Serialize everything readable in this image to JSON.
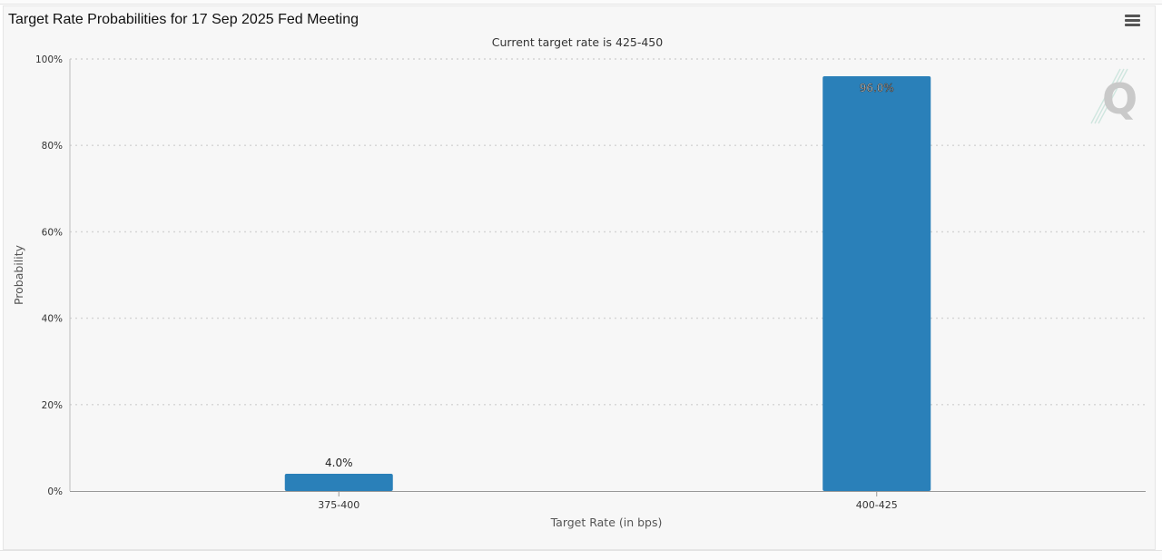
{
  "header": {
    "title": "Target Rate Probabilities for 17 Sep 2025 Fed Meeting",
    "menu_icon": "hamburger-menu-icon"
  },
  "watermark": {
    "icon": "quikstrike-q-logo-icon",
    "letter": "Q"
  },
  "colors": {
    "bar": "#2a80b9",
    "panel_background": "#f7f7f7",
    "grid": "#d4d4d4",
    "axis_text": "#333333"
  },
  "chart_data": {
    "type": "bar",
    "title": "",
    "subtitle": "Current target rate is 425-450",
    "xlabel": "Target Rate (in bps)",
    "ylabel": "Probability",
    "categories": [
      "375-400",
      "400-425"
    ],
    "series": [
      {
        "values": [
          4.0,
          96.0
        ],
        "data_labels": [
          "4.0%",
          "96.0%"
        ]
      }
    ],
    "ylim": [
      0,
      100
    ],
    "yticks": [
      0,
      20,
      40,
      60,
      80,
      100
    ],
    "ytick_labels": [
      "0%",
      "20%",
      "40%",
      "60%",
      "80%",
      "100%"
    ],
    "grid": true,
    "legend": "none"
  }
}
